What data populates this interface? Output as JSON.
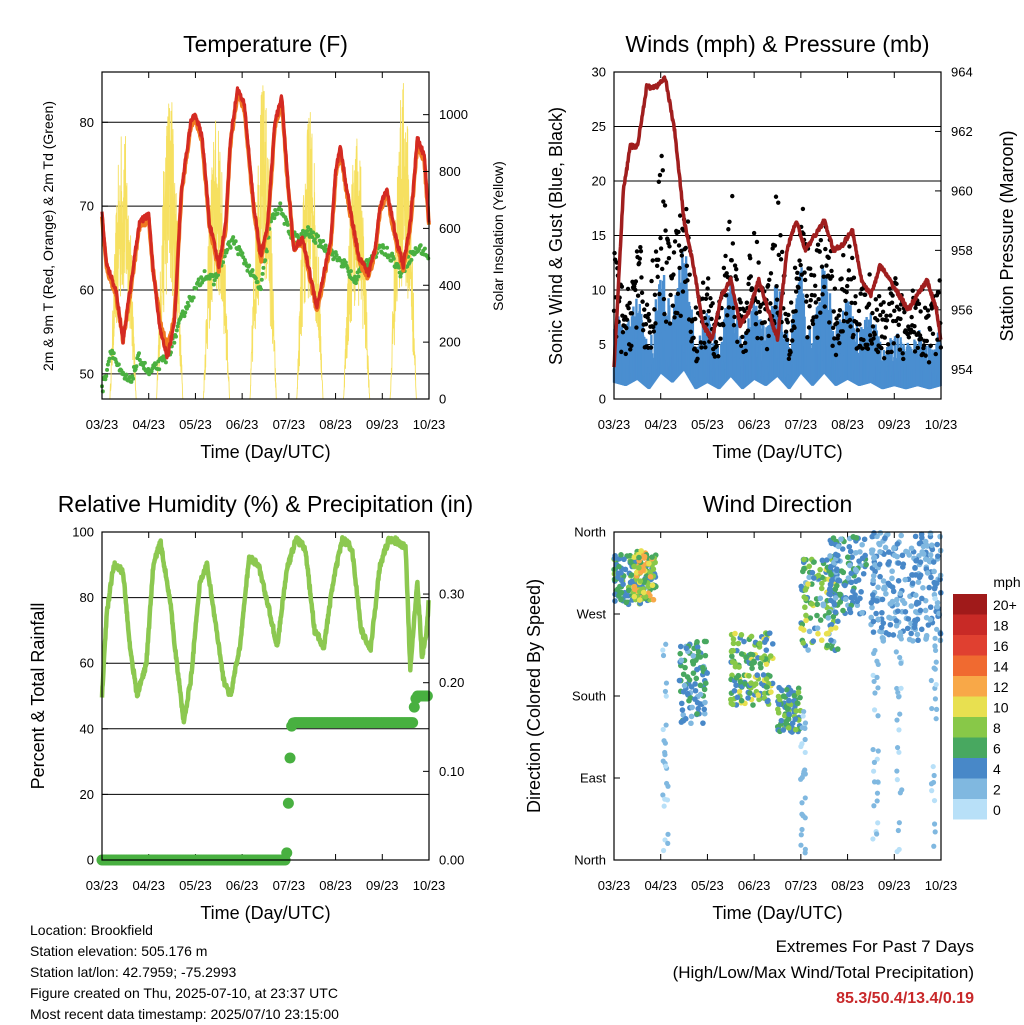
{
  "colors": {
    "temp2m": "#d42a22",
    "temp9m": "#f07a20",
    "dewpoint": "#4ab040",
    "solar": "#f6e060",
    "wind": "#4a8ed0",
    "gust": "#000000",
    "pressure": "#a01e1e",
    "rh": "#8cc850",
    "precip": "#48b040"
  },
  "footer": {
    "location": "Location: Brookfield",
    "elevation": "Station elevation: 505.176 m",
    "latlon": "Station lat/lon: 42.7959; -75.2993",
    "created": "Figure created on Thu, 2025-07-10, at 23:37 UTC",
    "recent": "Most recent data timestamp: 2025/07/10 23:15:00"
  },
  "extremes": {
    "title": "Extremes For Past 7 Days",
    "subtitle": "(High/Low/Max Wind/Total Precipitation)",
    "values": "85.3/50.4/13.4/0.19"
  },
  "chart_data": [
    {
      "type": "line",
      "title": "Temperature (F)",
      "xlabel": "Time (Day/UTC)",
      "ylabel": "2m & 9m T (Red, Orange) & 2m Td (Green)",
      "y2label": "Solar Insolation (Yellow)",
      "xticks": [
        "03/23",
        "04/23",
        "05/23",
        "06/23",
        "07/23",
        "08/23",
        "09/23",
        "10/23"
      ],
      "xlim": [
        0,
        7
      ],
      "ylim": [
        47,
        86
      ],
      "yticks": [
        50,
        60,
        70,
        80
      ],
      "y2lim": [
        0,
        1150
      ],
      "y2ticks": [
        0,
        200,
        400,
        600,
        800,
        1000
      ],
      "grid": true,
      "series": [
        {
          "key": "temp2m",
          "x": [
            0,
            0.1,
            0.3,
            0.45,
            0.6,
            0.8,
            1.0,
            1.1,
            1.25,
            1.4,
            1.55,
            1.7,
            1.9,
            2.0,
            2.15,
            2.3,
            2.5,
            2.65,
            2.75,
            2.9,
            3.05,
            3.25,
            3.4,
            3.55,
            3.7,
            3.85,
            3.95,
            4.1,
            4.3,
            4.45,
            4.6,
            4.75,
            4.9,
            5.0,
            5.1,
            5.3,
            5.5,
            5.7,
            5.85,
            5.95,
            6.1,
            6.3,
            6.45,
            6.6,
            6.75,
            6.9,
            7.0
          ],
          "y": [
            69,
            63,
            60,
            54,
            60,
            68,
            69,
            62,
            55,
            52,
            56,
            72,
            80,
            81,
            78,
            68,
            63,
            68,
            78,
            84,
            82,
            70,
            64,
            68,
            80,
            83,
            75,
            65,
            66,
            62,
            58,
            62,
            66,
            74,
            77,
            70,
            64,
            62,
            65,
            70,
            72,
            66,
            63,
            68,
            78,
            76,
            68
          ]
        },
        {
          "key": "temp9m",
          "x": [
            0,
            0.1,
            0.3,
            0.45,
            0.6,
            0.8,
            1.0,
            1.1,
            1.25,
            1.4,
            1.55,
            1.7,
            1.9,
            2.0,
            2.15,
            2.3,
            2.5,
            2.65,
            2.75,
            2.9,
            3.05,
            3.25,
            3.4,
            3.55,
            3.7,
            3.85,
            3.95,
            4.1,
            4.3,
            4.45,
            4.6,
            4.75,
            4.9,
            5.0,
            5.1,
            5.3,
            5.5,
            5.7,
            5.85,
            5.95,
            6.1,
            6.3,
            6.45,
            6.6,
            6.75,
            6.9,
            7.0
          ],
          "y": [
            68.5,
            62.5,
            59.5,
            54,
            59.5,
            67.5,
            68.5,
            62,
            56,
            53,
            56.5,
            71.5,
            79.5,
            80.5,
            77.5,
            67.5,
            62.5,
            67.5,
            77.5,
            83.5,
            81.5,
            69.5,
            63.5,
            67.5,
            79.5,
            82.5,
            74.5,
            65,
            65.5,
            61.5,
            57.5,
            61.5,
            65.5,
            73.5,
            76.5,
            69.5,
            63.5,
            61.5,
            64.5,
            69.5,
            71.5,
            65.5,
            62.5,
            67.5,
            77.5,
            75.5,
            67.5
          ]
        },
        {
          "key": "dewpoint",
          "x": [
            0,
            0.2,
            0.4,
            0.6,
            0.8,
            1.0,
            1.2,
            1.4,
            1.6,
            1.8,
            2.0,
            2.2,
            2.4,
            2.6,
            2.8,
            3.0,
            3.2,
            3.4,
            3.6,
            3.8,
            4.0,
            4.2,
            4.4,
            4.6,
            4.8,
            5.0,
            5.2,
            5.4,
            5.6,
            5.8,
            6.0,
            6.2,
            6.4,
            6.6,
            6.8,
            7.0
          ],
          "y": [
            48,
            53,
            50,
            49,
            52,
            50,
            51,
            52,
            55,
            58,
            60,
            62,
            61,
            64,
            66,
            64,
            62,
            60,
            68,
            70,
            67,
            66,
            67,
            66,
            65,
            64,
            63,
            61,
            63,
            64,
            65,
            64,
            62,
            64,
            65,
            64
          ]
        }
      ],
      "solar_peaks": {
        "x": [
          0.45,
          1.45,
          2.45,
          3.45,
          4.45,
          5.45,
          6.45
        ],
        "y": [
          980,
          1100,
          1000,
          1120,
          1020,
          950,
          1120
        ]
      }
    },
    {
      "type": "scatter",
      "title": "Winds (mph) & Pressure (mb)",
      "xlabel": "Time (Day/UTC)",
      "ylabel": "Sonic Wind & Gust (Blue, Black)",
      "y2label": "Station Pressure (Maroon)",
      "xticks": [
        "03/23",
        "04/23",
        "05/23",
        "06/23",
        "07/23",
        "08/23",
        "09/23",
        "10/23"
      ],
      "xlim": [
        0,
        7
      ],
      "ylim": [
        0,
        30
      ],
      "yticks": [
        0,
        5,
        10,
        15,
        20,
        25,
        30
      ],
      "y2lim": [
        953,
        964
      ],
      "y2ticks": [
        954,
        956,
        958,
        960,
        962,
        964
      ],
      "grid": true,
      "pressure": {
        "x": [
          0,
          0.1,
          0.2,
          0.35,
          0.5,
          0.7,
          0.9,
          1.1,
          1.3,
          1.5,
          1.7,
          1.9,
          2.1,
          2.3,
          2.5,
          2.7,
          2.9,
          3.1,
          3.3,
          3.5,
          3.7,
          3.9,
          4.1,
          4.3,
          4.5,
          4.7,
          4.9,
          5.1,
          5.3,
          5.5,
          5.7,
          5.9,
          6.1,
          6.3,
          6.5,
          6.7,
          6.9,
          7.0
        ],
        "y": [
          954,
          957,
          960,
          961.5,
          961.5,
          963.5,
          963.5,
          963.8,
          962,
          959,
          957.5,
          955.5,
          955,
          956.5,
          957,
          955.5,
          956,
          957,
          956,
          955,
          958,
          959,
          958,
          958.5,
          959,
          958,
          958.2,
          958.7,
          957,
          956.5,
          957.5,
          957,
          956.5,
          956,
          956.5,
          957,
          956,
          955
        ]
      },
      "wind_mean": {
        "x": [
          0,
          0.25,
          0.5,
          0.75,
          1.0,
          1.25,
          1.5,
          1.75,
          2.0,
          2.25,
          2.5,
          2.75,
          3.0,
          3.25,
          3.5,
          3.75,
          4.0,
          4.25,
          4.5,
          4.75,
          5.0,
          5.25,
          5.5,
          5.75,
          6.0,
          6.25,
          6.5,
          6.75,
          7.0
        ],
        "y": [
          5,
          4,
          6,
          3,
          8,
          5,
          9,
          3,
          5,
          3,
          7,
          3,
          6,
          4,
          7,
          3,
          8,
          4,
          8,
          4,
          6,
          4,
          5,
          3,
          4,
          3,
          4,
          3,
          4
        ]
      },
      "gust_mean": {
        "x": [
          0,
          0.25,
          0.5,
          0.75,
          1.0,
          1.25,
          1.5,
          1.75,
          2.0,
          2.25,
          2.5,
          2.75,
          3.0,
          3.25,
          3.5,
          3.75,
          4.0,
          4.25,
          4.5,
          4.75,
          5.0,
          5.25,
          5.5,
          5.75,
          6.0,
          6.25,
          6.5,
          6.75,
          7.0
        ],
        "y": [
          10,
          6,
          11,
          6,
          16,
          9,
          14,
          6,
          9,
          6,
          14,
          6,
          11,
          7,
          14,
          6,
          13,
          8,
          13,
          7,
          11,
          7,
          8,
          6,
          8,
          6,
          8,
          6,
          8
        ]
      }
    },
    {
      "type": "line",
      "title": "Relative Humidity (%) & Precipitation (in)",
      "xlabel": "Time (Day/UTC)",
      "ylabel": "Percent & Total Rainfall",
      "xticks": [
        "03/23",
        "04/23",
        "05/23",
        "06/23",
        "07/23",
        "08/23",
        "09/23",
        "10/23"
      ],
      "xlim": [
        0,
        7
      ],
      "ylim": [
        0,
        100
      ],
      "yticks": [
        0,
        20,
        40,
        60,
        80,
        100
      ],
      "y2lim": [
        0,
        0.37
      ],
      "y2ticks": [
        "0.00",
        "0.10",
        "0.20",
        "0.30"
      ],
      "grid": true,
      "rh": {
        "x": [
          0,
          0.1,
          0.25,
          0.45,
          0.6,
          0.75,
          0.95,
          1.1,
          1.25,
          1.45,
          1.6,
          1.75,
          1.9,
          2.1,
          2.25,
          2.45,
          2.6,
          2.75,
          2.95,
          3.15,
          3.35,
          3.55,
          3.75,
          3.95,
          4.15,
          4.35,
          4.55,
          4.75,
          4.95,
          5.15,
          5.35,
          5.55,
          5.75,
          5.95,
          6.15,
          6.35,
          6.5,
          6.6,
          6.75,
          6.85,
          6.95,
          7.0
        ],
        "y": [
          50,
          75,
          90,
          88,
          65,
          50,
          60,
          90,
          97,
          80,
          60,
          42,
          55,
          85,
          90,
          70,
          55,
          50,
          65,
          92,
          90,
          78,
          65,
          88,
          98,
          95,
          70,
          65,
          85,
          98,
          95,
          70,
          64,
          90,
          98,
          97,
          95,
          58,
          85,
          62,
          70,
          80
        ]
      },
      "precip": {
        "x": [
          0,
          1,
          2,
          3,
          3.95,
          4.0,
          4.05,
          4.1,
          4.5,
          5.0,
          6.0,
          6.65,
          6.7,
          6.75,
          7.0
        ],
        "y": [
          0,
          0,
          0,
          0,
          0,
          0.08,
          0.15,
          0.155,
          0.155,
          0.155,
          0.155,
          0.155,
          0.18,
          0.185,
          0.185
        ]
      }
    },
    {
      "type": "scatter",
      "title": "Wind Direction",
      "xlabel": "Time (Day/UTC)",
      "ylabel": "Direction (Colored By Speed)",
      "xticks": [
        "03/23",
        "04/23",
        "05/23",
        "06/23",
        "07/23",
        "08/23",
        "09/23",
        "10/23"
      ],
      "xlim": [
        0,
        7
      ],
      "ylim": [
        0,
        360
      ],
      "ytick_labels": [
        "North",
        "East",
        "South",
        "West",
        "North"
      ],
      "yticks": [
        0,
        90,
        180,
        270,
        360
      ],
      "legend_title": "mph",
      "legend_labels": [
        "20+",
        "18",
        "16",
        "14",
        "12",
        "10",
        "8",
        "6",
        "4",
        "2",
        "0"
      ],
      "legend_colors": [
        "#a01a1a",
        "#c82a26",
        "#e04030",
        "#f06a30",
        "#f8a848",
        "#e8e050",
        "#88c848",
        "#48a860",
        "#4888c8",
        "#80b8e0",
        "#b8e0f8"
      ],
      "clusters": [
        {
          "x": [
            0,
            0.9
          ],
          "dir": [
            280,
            335
          ],
          "speed": [
            3,
            8
          ]
        },
        {
          "x": [
            0.4,
            0.85
          ],
          "dir": [
            285,
            340
          ],
          "speed": [
            6,
            13
          ]
        },
        {
          "x": [
            1.4,
            2.0
          ],
          "dir": [
            150,
            240
          ],
          "speed": [
            2,
            7
          ]
        },
        {
          "x": [
            2.5,
            3.4
          ],
          "dir": [
            170,
            250
          ],
          "speed": [
            3,
            10
          ]
        },
        {
          "x": [
            3.5,
            4.0
          ],
          "dir": [
            140,
            190
          ],
          "speed": [
            3,
            8
          ]
        },
        {
          "x": [
            4.0,
            4.8
          ],
          "dir": [
            230,
            330
          ],
          "speed": [
            2,
            10
          ]
        },
        {
          "x": [
            4.6,
            5.4
          ],
          "dir": [
            270,
            355
          ],
          "speed": [
            2,
            6
          ]
        },
        {
          "x": [
            5.5,
            7.0
          ],
          "dir": [
            240,
            360
          ],
          "speed": [
            1,
            5
          ]
        }
      ],
      "sparse_columns": [
        {
          "x": 1.1,
          "dir": [
            0,
            240
          ],
          "speed": [
            0,
            3
          ]
        },
        {
          "x": 4.05,
          "dir": [
            0,
            170
          ],
          "speed": [
            0,
            3
          ]
        },
        {
          "x": 5.6,
          "dir": [
            20,
            230
          ],
          "speed": [
            0,
            3
          ]
        },
        {
          "x": 6.1,
          "dir": [
            0,
            280
          ],
          "speed": [
            0,
            3
          ]
        },
        {
          "x": 6.85,
          "dir": [
            10,
            300
          ],
          "speed": [
            0,
            3
          ]
        }
      ]
    }
  ]
}
